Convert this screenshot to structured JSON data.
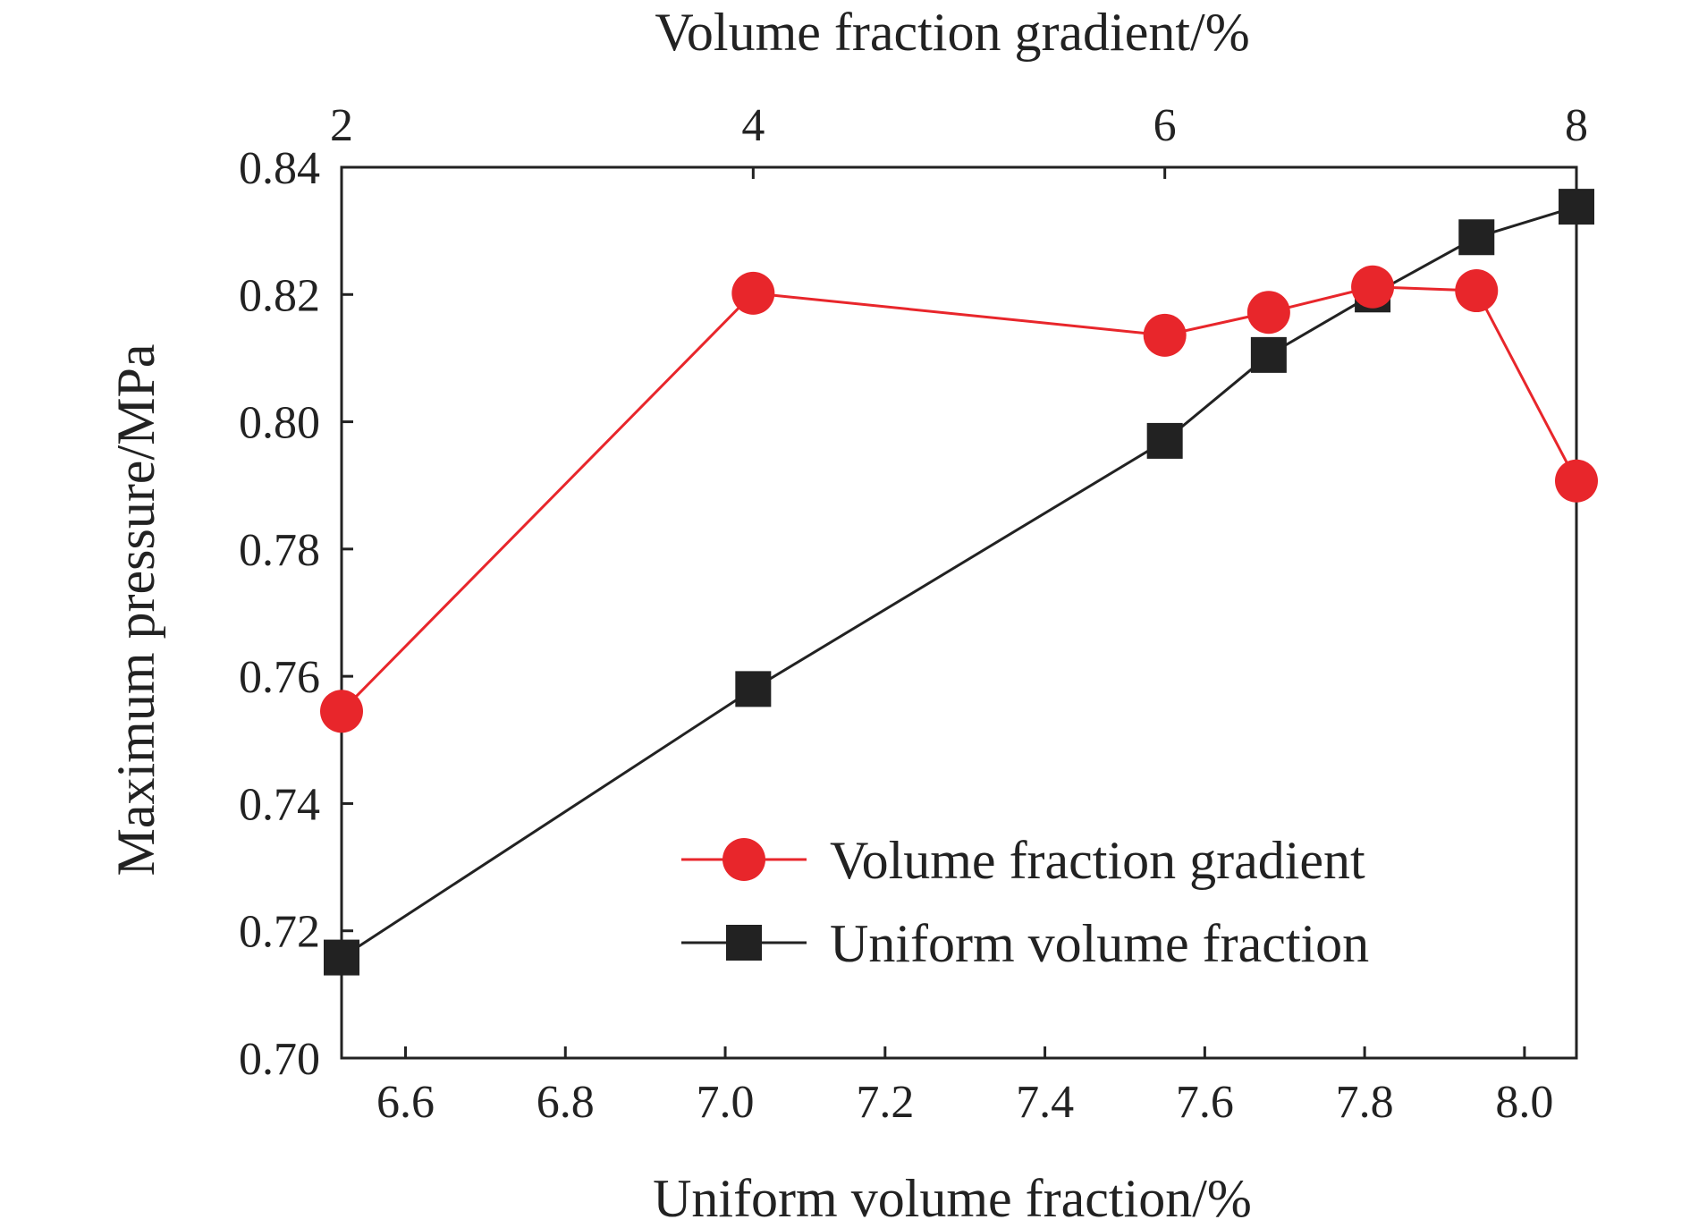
{
  "chart_data": {
    "type": "line",
    "xlabel_bottom": "Uniform volume fraction/%",
    "xlabel_top": "Volume fraction gradient/%",
    "ylabel": "Maximum pressure/MPa",
    "bottom_axis": {
      "range": [
        6.52,
        8.065
      ],
      "ticks": [
        "6.6",
        "6.8",
        "7.0",
        "7.2",
        "7.4",
        "7.6",
        "7.8",
        "8.0"
      ],
      "tick_values": [
        6.6,
        6.8,
        7.0,
        7.2,
        7.4,
        7.6,
        7.8,
        8.0
      ]
    },
    "top_axis": {
      "ticks": [
        "2",
        "4",
        "6",
        "8"
      ],
      "tick_values": [
        2,
        4,
        6,
        8
      ]
    },
    "y_axis": {
      "range": [
        0.7,
        0.84
      ],
      "ticks": [
        "0.70",
        "0.72",
        "0.74",
        "0.76",
        "0.78",
        "0.80",
        "0.82",
        "0.84"
      ],
      "tick_values": [
        0.7,
        0.72,
        0.74,
        0.76,
        0.78,
        0.8,
        0.82,
        0.84
      ]
    },
    "grid": false,
    "legend_position": "bottom-right",
    "series": [
      {
        "name": "Volume fraction gradient",
        "color": "#e8262b",
        "marker": "circle",
        "x": [
          6.52,
          7.035,
          7.55,
          7.68,
          7.81,
          7.94,
          8.065
        ],
        "y": [
          0.7545,
          0.8202,
          0.8136,
          0.8172,
          0.8212,
          0.8206,
          0.7907
        ]
      },
      {
        "name": "Uniform volume fraction",
        "color": "#222222",
        "marker": "square",
        "x": [
          6.52,
          7.035,
          7.55,
          7.68,
          7.81,
          7.94,
          8.065
        ],
        "y": [
          0.7158,
          0.758,
          0.797,
          0.8105,
          0.82,
          0.829,
          0.8338
        ]
      }
    ]
  }
}
